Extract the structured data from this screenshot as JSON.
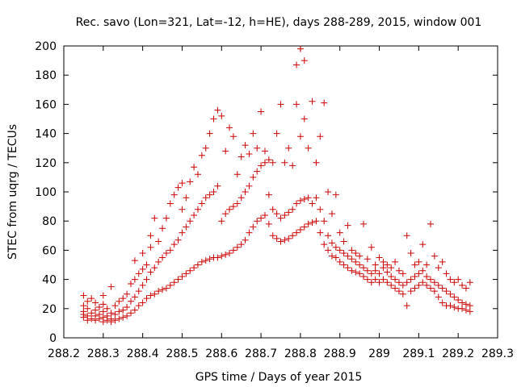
{
  "chart_data": {
    "type": "scatter",
    "title": "Rec. savo (Lon=321, Lat=-12, h=HE), days 288-289, 2015, window 001",
    "xlabel": "GPS time / Days of year 2015",
    "ylabel": "STEC from uqrg / TECUs",
    "xlim": [
      288.2,
      289.3
    ],
    "ylim": [
      0,
      200
    ],
    "xticks": [
      288.2,
      288.3,
      288.4,
      288.5,
      288.6,
      288.7,
      288.8,
      288.9,
      289,
      289.1,
      289.2,
      289.3
    ],
    "xtick_labels": [
      "288.2",
      "288.3",
      "288.4",
      "288.5",
      "288.6",
      "288.7",
      "288.8",
      "288.9",
      "289",
      "289.1",
      "289.2",
      "289.3"
    ],
    "yticks": [
      0,
      20,
      40,
      60,
      80,
      100,
      120,
      140,
      160,
      180,
      200
    ],
    "ytick_labels": [
      "0",
      "20",
      "40",
      "60",
      "80",
      "100",
      "120",
      "140",
      "160",
      "180",
      "200"
    ],
    "marker": "+",
    "color": "#cc0000",
    "grid": false,
    "legend": "none",
    "points": [
      [
        288.25,
        14
      ],
      [
        288.25,
        16
      ],
      [
        288.25,
        18
      ],
      [
        288.25,
        22
      ],
      [
        288.25,
        29
      ],
      [
        288.26,
        12
      ],
      [
        288.26,
        15
      ],
      [
        288.26,
        20
      ],
      [
        288.26,
        25
      ],
      [
        288.27,
        13
      ],
      [
        288.27,
        17
      ],
      [
        288.27,
        27
      ],
      [
        288.28,
        12
      ],
      [
        288.28,
        15
      ],
      [
        288.28,
        19
      ],
      [
        288.28,
        24
      ],
      [
        288.29,
        13
      ],
      [
        288.29,
        16
      ],
      [
        288.29,
        21
      ],
      [
        288.3,
        11
      ],
      [
        288.3,
        14
      ],
      [
        288.3,
        18
      ],
      [
        288.3,
        23
      ],
      [
        288.3,
        29
      ],
      [
        288.31,
        12
      ],
      [
        288.31,
        15
      ],
      [
        288.31,
        20
      ],
      [
        288.32,
        11
      ],
      [
        288.32,
        13
      ],
      [
        288.32,
        17
      ],
      [
        288.32,
        35
      ],
      [
        288.33,
        12
      ],
      [
        288.33,
        16
      ],
      [
        288.33,
        22
      ],
      [
        288.34,
        13
      ],
      [
        288.34,
        18
      ],
      [
        288.34,
        25
      ],
      [
        288.35,
        14
      ],
      [
        288.35,
        19
      ],
      [
        288.35,
        27
      ],
      [
        288.36,
        15
      ],
      [
        288.36,
        21
      ],
      [
        288.36,
        30
      ],
      [
        288.37,
        17
      ],
      [
        288.37,
        25
      ],
      [
        288.37,
        37
      ],
      [
        288.38,
        19
      ],
      [
        288.38,
        28
      ],
      [
        288.38,
        40
      ],
      [
        288.38,
        53
      ],
      [
        288.39,
        22
      ],
      [
        288.39,
        32
      ],
      [
        288.39,
        44
      ],
      [
        288.4,
        24
      ],
      [
        288.4,
        36
      ],
      [
        288.4,
        47
      ],
      [
        288.4,
        58
      ],
      [
        288.41,
        27
      ],
      [
        288.41,
        40
      ],
      [
        288.41,
        50
      ],
      [
        288.42,
        29
      ],
      [
        288.42,
        45
      ],
      [
        288.42,
        62
      ],
      [
        288.42,
        70
      ],
      [
        288.43,
        30
      ],
      [
        288.43,
        48
      ],
      [
        288.43,
        82
      ],
      [
        288.44,
        32
      ],
      [
        288.44,
        52
      ],
      [
        288.44,
        66
      ],
      [
        288.45,
        33
      ],
      [
        288.45,
        55
      ],
      [
        288.45,
        75
      ],
      [
        288.46,
        34
      ],
      [
        288.46,
        58
      ],
      [
        288.46,
        82
      ],
      [
        288.47,
        36
      ],
      [
        288.47,
        60
      ],
      [
        288.47,
        92
      ],
      [
        288.48,
        38
      ],
      [
        288.48,
        64
      ],
      [
        288.48,
        98
      ],
      [
        288.49,
        40
      ],
      [
        288.49,
        67
      ],
      [
        288.49,
        103
      ],
      [
        288.5,
        42
      ],
      [
        288.5,
        72
      ],
      [
        288.5,
        88
      ],
      [
        288.5,
        106
      ],
      [
        288.51,
        44
      ],
      [
        288.51,
        76
      ],
      [
        288.51,
        96
      ],
      [
        288.52,
        46
      ],
      [
        288.52,
        80
      ],
      [
        288.52,
        107
      ],
      [
        288.53,
        48
      ],
      [
        288.53,
        84
      ],
      [
        288.53,
        117
      ],
      [
        288.54,
        50
      ],
      [
        288.54,
        88
      ],
      [
        288.54,
        112
      ],
      [
        288.55,
        52
      ],
      [
        288.55,
        92
      ],
      [
        288.55,
        125
      ],
      [
        288.56,
        53
      ],
      [
        288.56,
        96
      ],
      [
        288.56,
        130
      ],
      [
        288.57,
        54
      ],
      [
        288.57,
        98
      ],
      [
        288.57,
        140
      ],
      [
        288.58,
        55
      ],
      [
        288.58,
        100
      ],
      [
        288.58,
        150
      ],
      [
        288.59,
        55
      ],
      [
        288.59,
        104
      ],
      [
        288.59,
        156
      ],
      [
        288.6,
        56
      ],
      [
        288.6,
        80
      ],
      [
        288.6,
        152
      ],
      [
        288.61,
        57
      ],
      [
        288.61,
        85
      ],
      [
        288.61,
        128
      ],
      [
        288.62,
        58
      ],
      [
        288.62,
        88
      ],
      [
        288.62,
        144
      ],
      [
        288.63,
        60
      ],
      [
        288.63,
        90
      ],
      [
        288.63,
        138
      ],
      [
        288.64,
        62
      ],
      [
        288.64,
        92
      ],
      [
        288.64,
        112
      ],
      [
        288.65,
        64
      ],
      [
        288.65,
        96
      ],
      [
        288.65,
        124
      ],
      [
        288.66,
        67
      ],
      [
        288.66,
        100
      ],
      [
        288.66,
        132
      ],
      [
        288.67,
        72
      ],
      [
        288.67,
        104
      ],
      [
        288.67,
        126
      ],
      [
        288.68,
        76
      ],
      [
        288.68,
        110
      ],
      [
        288.68,
        140
      ],
      [
        288.69,
        80
      ],
      [
        288.69,
        114
      ],
      [
        288.69,
        130
      ],
      [
        288.7,
        82
      ],
      [
        288.7,
        118
      ],
      [
        288.7,
        155
      ],
      [
        288.71,
        84
      ],
      [
        288.71,
        120
      ],
      [
        288.71,
        128
      ],
      [
        288.72,
        78
      ],
      [
        288.72,
        98
      ],
      [
        288.72,
        122
      ],
      [
        288.73,
        70
      ],
      [
        288.73,
        88
      ],
      [
        288.73,
        120
      ],
      [
        288.74,
        68
      ],
      [
        288.74,
        85
      ],
      [
        288.74,
        140
      ],
      [
        288.75,
        66
      ],
      [
        288.75,
        82
      ],
      [
        288.75,
        160
      ],
      [
        288.76,
        67
      ],
      [
        288.76,
        84
      ],
      [
        288.76,
        120
      ],
      [
        288.77,
        68
      ],
      [
        288.77,
        86
      ],
      [
        288.77,
        130
      ],
      [
        288.78,
        70
      ],
      [
        288.78,
        88
      ],
      [
        288.78,
        118
      ],
      [
        288.79,
        72
      ],
      [
        288.79,
        92
      ],
      [
        288.79,
        160
      ],
      [
        288.79,
        187
      ],
      [
        288.8,
        74
      ],
      [
        288.8,
        94
      ],
      [
        288.8,
        138
      ],
      [
        288.8,
        198
      ],
      [
        288.81,
        76
      ],
      [
        288.81,
        95
      ],
      [
        288.81,
        150
      ],
      [
        288.81,
        190
      ],
      [
        288.82,
        78
      ],
      [
        288.82,
        96
      ],
      [
        288.82,
        130
      ],
      [
        288.83,
        79
      ],
      [
        288.83,
        92
      ],
      [
        288.83,
        162
      ],
      [
        288.84,
        80
      ],
      [
        288.84,
        96
      ],
      [
        288.84,
        120
      ],
      [
        288.85,
        72
      ],
      [
        288.85,
        88
      ],
      [
        288.85,
        138
      ],
      [
        288.86,
        64
      ],
      [
        288.86,
        80
      ],
      [
        288.86,
        161
      ],
      [
        288.87,
        60
      ],
      [
        288.87,
        70
      ],
      [
        288.87,
        100
      ],
      [
        288.88,
        56
      ],
      [
        288.88,
        65
      ],
      [
        288.88,
        85
      ],
      [
        288.89,
        55
      ],
      [
        288.89,
        62
      ],
      [
        288.89,
        98
      ],
      [
        288.9,
        52
      ],
      [
        288.9,
        60
      ],
      [
        288.9,
        72
      ],
      [
        288.91,
        50
      ],
      [
        288.91,
        58
      ],
      [
        288.91,
        66
      ],
      [
        288.92,
        48
      ],
      [
        288.92,
        56
      ],
      [
        288.92,
        77
      ],
      [
        288.93,
        46
      ],
      [
        288.93,
        54
      ],
      [
        288.93,
        60
      ],
      [
        288.94,
        45
      ],
      [
        288.94,
        52
      ],
      [
        288.94,
        58
      ],
      [
        288.95,
        44
      ],
      [
        288.95,
        50
      ],
      [
        288.95,
        56
      ],
      [
        288.96,
        42
      ],
      [
        288.96,
        48
      ],
      [
        288.96,
        78
      ],
      [
        288.97,
        40
      ],
      [
        288.97,
        46
      ],
      [
        288.97,
        54
      ],
      [
        288.98,
        38
      ],
      [
        288.98,
        44
      ],
      [
        288.98,
        62
      ],
      [
        288.99,
        40
      ],
      [
        288.99,
        46
      ],
      [
        288.99,
        50
      ],
      [
        289.0,
        38
      ],
      [
        289.0,
        44
      ],
      [
        289.0,
        55
      ],
      [
        289.01,
        40
      ],
      [
        289.01,
        48
      ],
      [
        289.01,
        52
      ],
      [
        289.02,
        38
      ],
      [
        289.02,
        45
      ],
      [
        289.02,
        50
      ],
      [
        289.03,
        36
      ],
      [
        289.03,
        42
      ],
      [
        289.03,
        48
      ],
      [
        289.04,
        34
      ],
      [
        289.04,
        40
      ],
      [
        289.04,
        52
      ],
      [
        289.05,
        32
      ],
      [
        289.05,
        38
      ],
      [
        289.05,
        46
      ],
      [
        289.06,
        30
      ],
      [
        289.06,
        36
      ],
      [
        289.06,
        44
      ],
      [
        289.07,
        22
      ],
      [
        289.07,
        38
      ],
      [
        289.07,
        70
      ],
      [
        289.08,
        32
      ],
      [
        289.08,
        40
      ],
      [
        289.08,
        58
      ],
      [
        289.09,
        34
      ],
      [
        289.09,
        42
      ],
      [
        289.09,
        50
      ],
      [
        289.1,
        36
      ],
      [
        289.1,
        44
      ],
      [
        289.1,
        52
      ],
      [
        289.11,
        38
      ],
      [
        289.11,
        46
      ],
      [
        289.11,
        64
      ],
      [
        289.12,
        36
      ],
      [
        289.12,
        42
      ],
      [
        289.12,
        50
      ],
      [
        289.13,
        34
      ],
      [
        289.13,
        40
      ],
      [
        289.13,
        78
      ],
      [
        289.14,
        32
      ],
      [
        289.14,
        38
      ],
      [
        289.14,
        56
      ],
      [
        289.15,
        28
      ],
      [
        289.15,
        36
      ],
      [
        289.15,
        48
      ],
      [
        289.16,
        24
      ],
      [
        289.16,
        34
      ],
      [
        289.16,
        52
      ],
      [
        289.17,
        22
      ],
      [
        289.17,
        32
      ],
      [
        289.17,
        44
      ],
      [
        289.18,
        22
      ],
      [
        289.18,
        30
      ],
      [
        289.18,
        40
      ],
      [
        289.19,
        21
      ],
      [
        289.19,
        28
      ],
      [
        289.19,
        38
      ],
      [
        289.2,
        20
      ],
      [
        289.2,
        26
      ],
      [
        289.2,
        40
      ],
      [
        289.21,
        20
      ],
      [
        289.21,
        24
      ],
      [
        289.21,
        36
      ],
      [
        289.22,
        19
      ],
      [
        289.22,
        23
      ],
      [
        289.22,
        34
      ],
      [
        289.23,
        18
      ],
      [
        289.23,
        22
      ],
      [
        289.23,
        38
      ]
    ]
  }
}
